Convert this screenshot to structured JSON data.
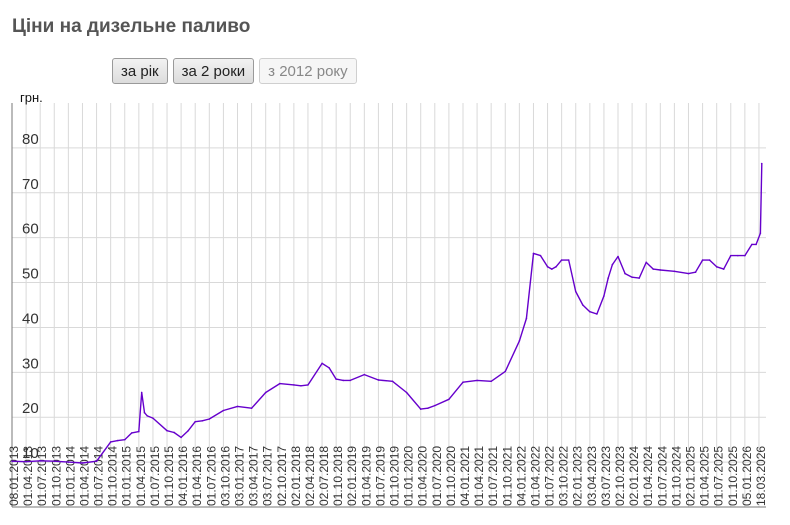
{
  "page": {
    "title": "Ціни на дизельне паливо"
  },
  "buttons": [
    {
      "label": "за рік",
      "state": "normal"
    },
    {
      "label": "за 2 роки",
      "state": "normal"
    },
    {
      "label": "з 2012 року",
      "state": "disabled"
    }
  ],
  "chart_data": {
    "type": "line",
    "ylabel": "грн.",
    "ylim": [
      0,
      90
    ],
    "yticks": [
      10,
      20,
      30,
      40,
      50,
      60,
      70,
      80
    ],
    "grid": true,
    "line_color": "#6600cc",
    "grid_color": "#d9d9d9",
    "xticks": [
      "08.01.2013",
      "01.04.2013",
      "01.07.2013",
      "01.10.2013",
      "01.01.2014",
      "01.04.2014",
      "01.07.2014",
      "01.10.2014",
      "01.01.2015",
      "01.04.2015",
      "01.07.2015",
      "01.10.2015",
      "04.01.2016",
      "01.04.2016",
      "01.07.2016",
      "03.10.2016",
      "03.01.2017",
      "03.04.2017",
      "03.07.2017",
      "02.10.2017",
      "02.01.2018",
      "02.04.2018",
      "02.07.2018",
      "01.10.2018",
      "02.01.2019",
      "01.04.2019",
      "01.07.2019",
      "01.10.2019",
      "01.01.2020",
      "01.04.2020",
      "01.07.2020",
      "01.10.2020",
      "04.01.2021",
      "01.04.2021",
      "01.07.2021",
      "01.10.2021",
      "04.01.2022",
      "01.04.2022",
      "01.07.2022",
      "03.10.2022",
      "02.01.2023",
      "03.04.2023",
      "03.07.2023",
      "02.10.2023",
      "02.01.2024",
      "01.04.2024",
      "01.07.2024",
      "01.10.2024",
      "02.01.2025",
      "01.04.2025",
      "01.07.2025",
      "01.10.2025",
      "05.01.2026",
      "18.03.2026"
    ],
    "series": [
      {
        "x": [
          0,
          1,
          2,
          3,
          4,
          5,
          6,
          7,
          7.5,
          8,
          8.5,
          9,
          9.2,
          9.4,
          9.6,
          10,
          11,
          11.5,
          12,
          12.5,
          13,
          13.5,
          14,
          15,
          16,
          17,
          18,
          19,
          20,
          20.5,
          21,
          22,
          22.5,
          23,
          23.5,
          24,
          25,
          26,
          27,
          28,
          29,
          29.5,
          30,
          31,
          32,
          33,
          34,
          35,
          36,
          36.5,
          37,
          37.5,
          38,
          38.3,
          38.6,
          39,
          39.5,
          40,
          40.5,
          41,
          41.5,
          42,
          42.3,
          42.6,
          43,
          43.5,
          44,
          44.5,
          45,
          45.5,
          46,
          47,
          48,
          48.5,
          49,
          49.5,
          50,
          50.5,
          51,
          51.5,
          52,
          52.5,
          52.8,
          53.1,
          53.2
        ],
        "y": [
          10.2,
          10.1,
          10.3,
          10.2,
          10.0,
          9.8,
          10.2,
          14.5,
          14.8,
          15.0,
          16.5,
          16.8,
          25.5,
          21.0,
          20.3,
          19.8,
          17.0,
          16.6,
          15.5,
          17.0,
          19.0,
          19.2,
          19.6,
          21.5,
          22.4,
          22.0,
          25.5,
          27.5,
          27.2,
          27.0,
          27.2,
          32.0,
          31.0,
          28.5,
          28.2,
          28.2,
          29.5,
          28.3,
          28.0,
          25.5,
          21.8,
          22.0,
          22.6,
          24.0,
          27.8,
          28.2,
          28.0,
          30.2,
          37.0,
          42.0,
          56.5,
          56.0,
          53.5,
          53.0,
          53.5,
          55.0,
          55.0,
          48.0,
          45.0,
          43.5,
          43.0,
          47.0,
          51.0,
          54.0,
          55.8,
          52.0,
          51.2,
          51.0,
          54.5,
          53.0,
          52.8,
          52.5,
          52.0,
          52.3,
          55.0,
          55.0,
          53.5,
          53.0,
          56.0,
          56.0,
          56.0,
          58.5,
          58.5,
          61.0,
          76.5
        ]
      }
    ]
  }
}
